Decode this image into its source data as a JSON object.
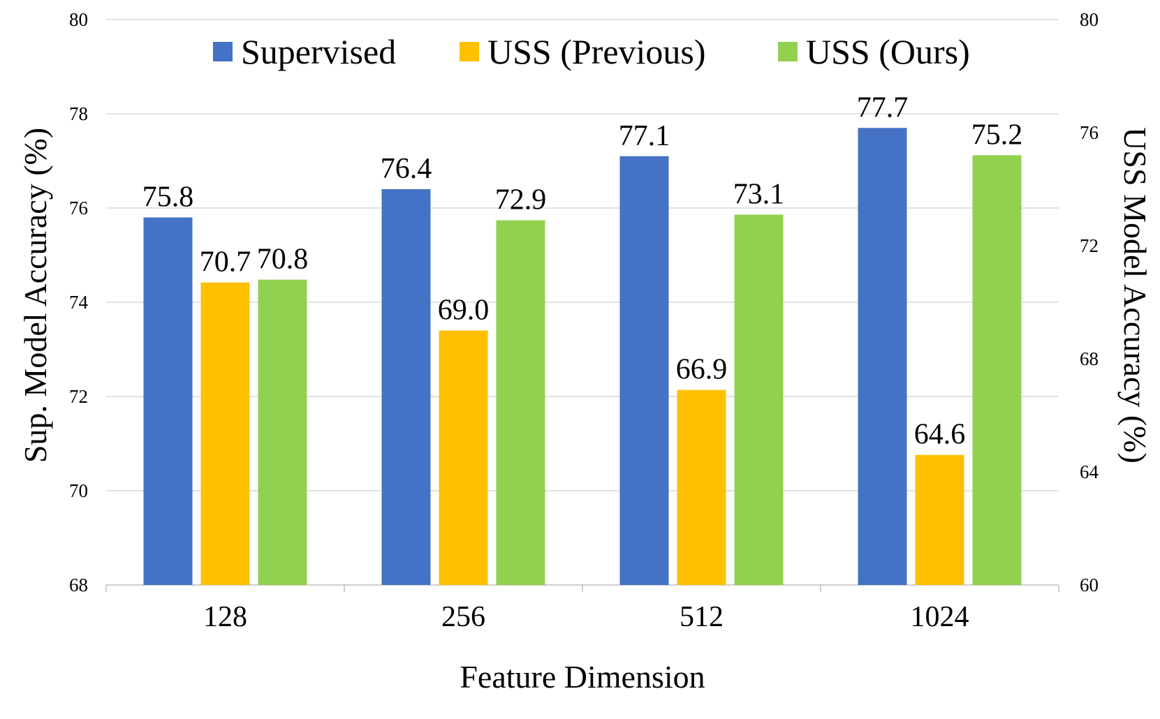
{
  "chart_data": {
    "type": "bar",
    "xlabel": "Feature Dimension",
    "ylabel_left": "Sup. Model Accuracy (%)",
    "ylabel_right": "USS Model Accuracy (%)",
    "categories": [
      "128",
      "256",
      "512",
      "1024"
    ],
    "ylim_left": [
      68,
      80
    ],
    "yticks_left": [
      "68",
      "70",
      "72",
      "74",
      "76",
      "78",
      "80"
    ],
    "ylim_right": [
      60,
      80
    ],
    "yticks_right": [
      "60",
      "64",
      "68",
      "72",
      "76",
      "80"
    ],
    "grid": true,
    "legend": "top",
    "series": [
      {
        "name": "Supervised",
        "axis": "left",
        "color": "#4472c4",
        "values": [
          75.8,
          76.4,
          77.1,
          77.7
        ],
        "labels": [
          "75.8",
          "76.4",
          "77.1",
          "77.7"
        ]
      },
      {
        "name": "USS (Previous)",
        "axis": "right",
        "color": "#ffc000",
        "values": [
          70.7,
          69.0,
          66.9,
          64.6
        ],
        "labels": [
          "70.7",
          "69.0",
          "66.9",
          "64.6"
        ]
      },
      {
        "name": "USS (Ours)",
        "axis": "right",
        "color": "#92d050",
        "values": [
          70.8,
          72.9,
          73.1,
          75.2
        ],
        "labels": [
          "70.8",
          "72.9",
          "73.1",
          "75.2"
        ]
      }
    ]
  }
}
